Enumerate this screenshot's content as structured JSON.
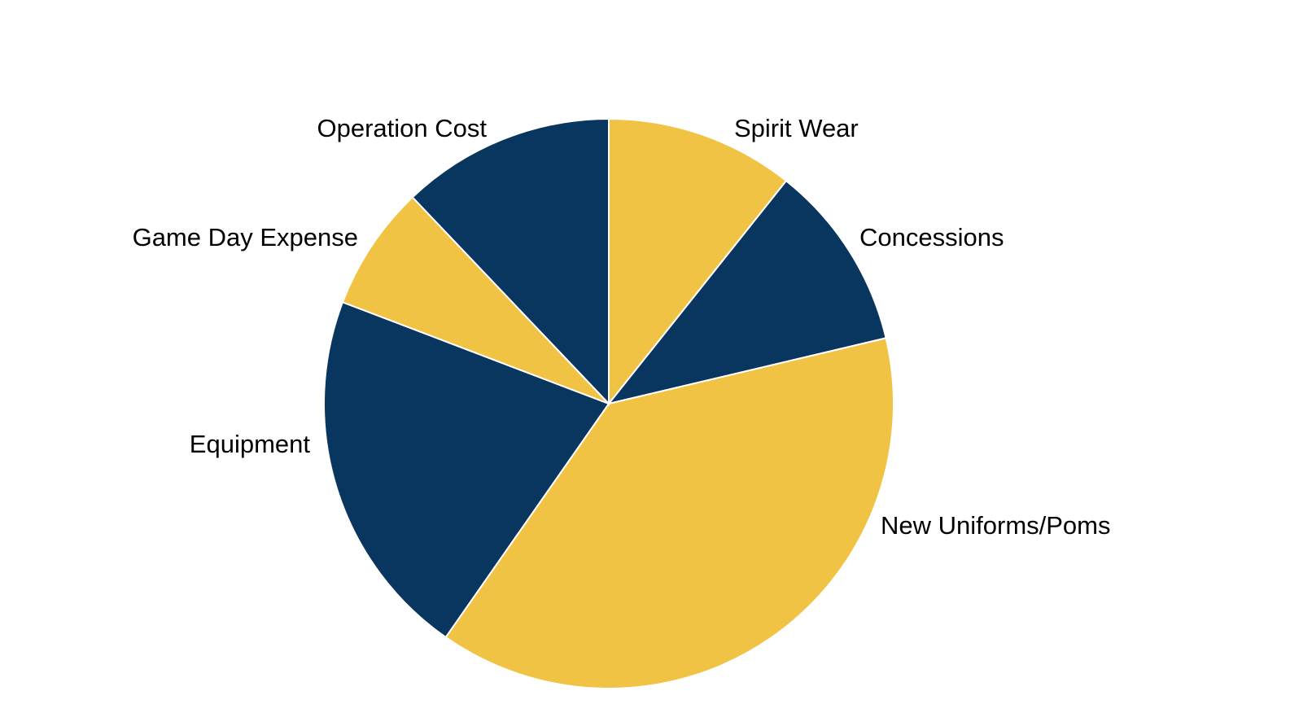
{
  "chart_data": {
    "type": "pie",
    "categories": [
      "Spirit Wear",
      "Concessions",
      "New Uniforms/Poms",
      "Equipment",
      "Game Day Expense",
      "Operation Cost"
    ],
    "values": [
      10.7,
      10.6,
      38.4,
      21.1,
      7.1,
      12.1
    ],
    "colors": [
      "#f1c344",
      "#08365f",
      "#f1c344",
      "#08365f",
      "#f1c344",
      "#08365f"
    ]
  }
}
